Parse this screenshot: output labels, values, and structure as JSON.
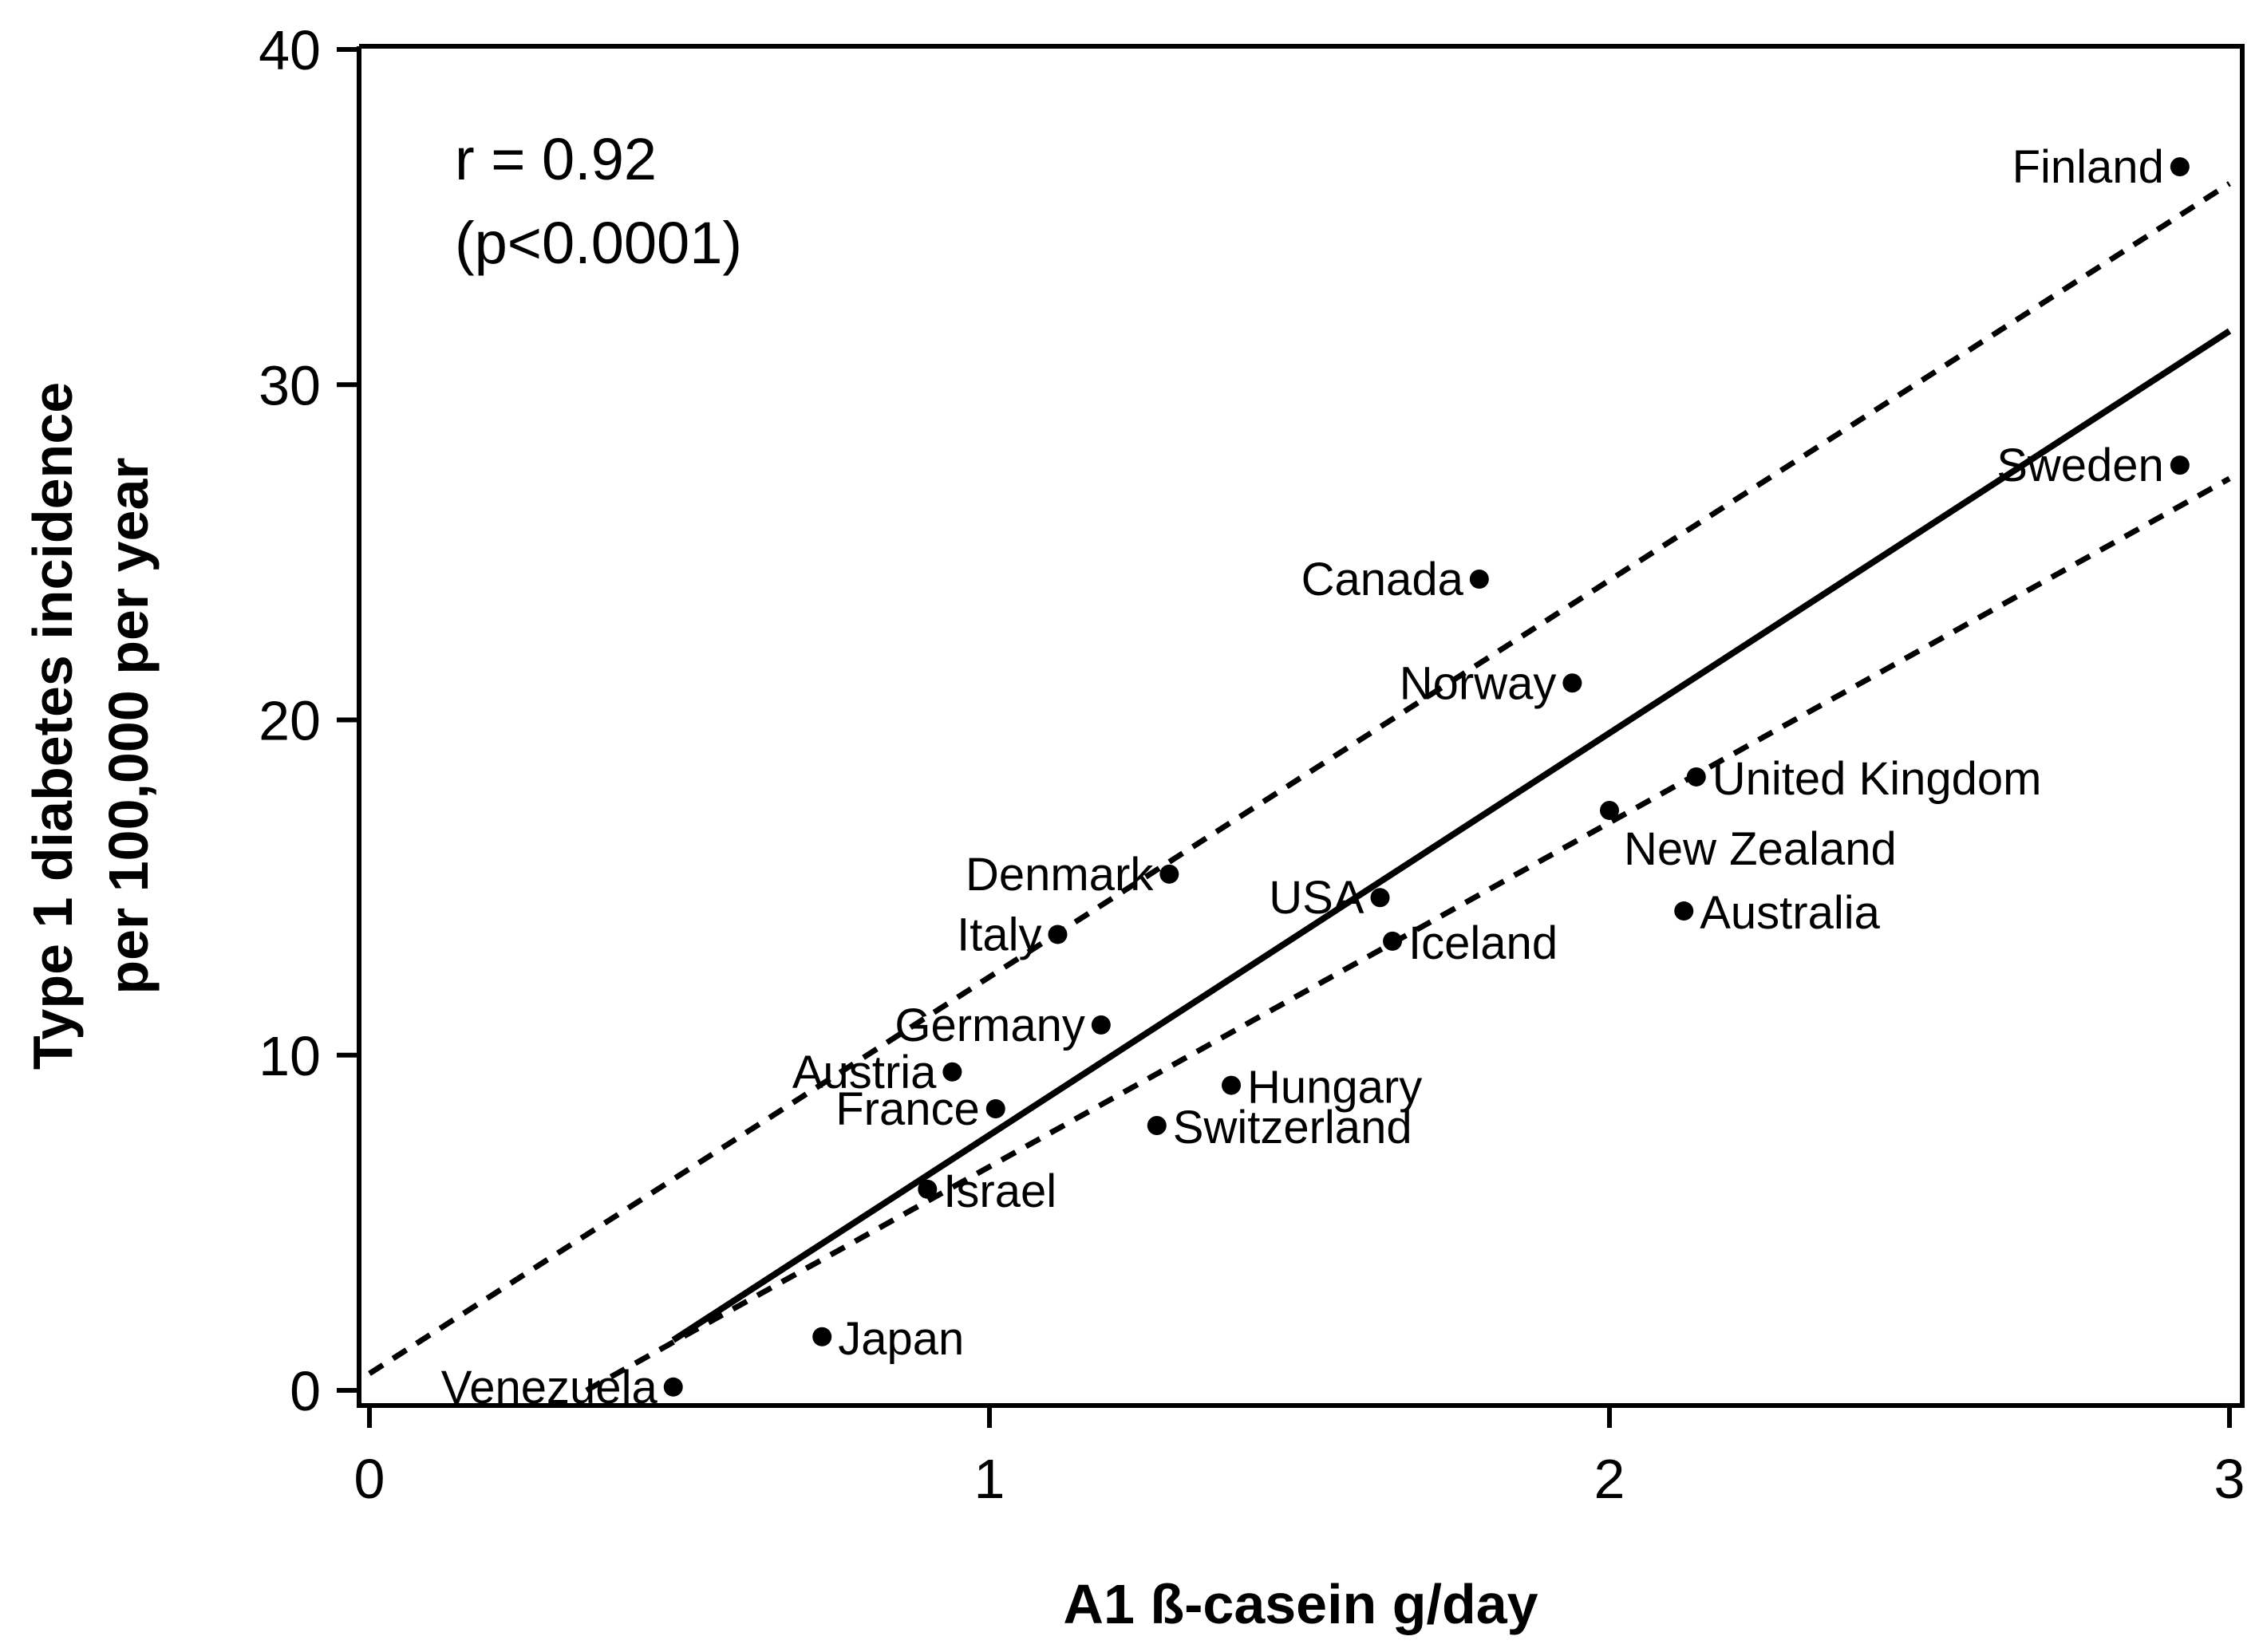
{
  "chart_data": {
    "type": "scatter",
    "xlabel": "A1 ß-casein g/day",
    "ylabel_lines": [
      "Type 1 diabetes incidence",
      "per 100,000 per year"
    ],
    "xlim": [
      0,
      3
    ],
    "ylim": [
      0,
      40
    ],
    "x_ticks": [
      0,
      1,
      2,
      3
    ],
    "y_ticks": [
      0,
      10,
      20,
      30,
      40
    ],
    "grid": false,
    "annotation_lines": [
      "r = 0.92",
      "(p<0.0001)"
    ],
    "points": [
      {
        "label": "Finland",
        "x": 2.92,
        "y": 36.5,
        "label_side": "left"
      },
      {
        "label": "Sweden",
        "x": 2.92,
        "y": 27.6,
        "label_side": "left"
      },
      {
        "label": "Canada",
        "x": 1.79,
        "y": 24.2,
        "label_side": "left"
      },
      {
        "label": "Norway",
        "x": 1.94,
        "y": 21.1,
        "label_side": "left"
      },
      {
        "label": "United Kingdom",
        "x": 2.14,
        "y": 18.3,
        "label_side": "right"
      },
      {
        "label": "New Zealand",
        "x": 2.0,
        "y": 17.3,
        "label_side": "right-below"
      },
      {
        "label": "Australia",
        "x": 2.12,
        "y": 14.3,
        "label_side": "right"
      },
      {
        "label": "Denmark",
        "x": 1.29,
        "y": 15.4,
        "label_side": "left"
      },
      {
        "label": "USA",
        "x": 1.63,
        "y": 14.7,
        "label_side": "left"
      },
      {
        "label": "Italy",
        "x": 1.11,
        "y": 13.6,
        "label_side": "left"
      },
      {
        "label": "Iceland",
        "x": 1.65,
        "y": 13.4,
        "label_side": "right"
      },
      {
        "label": "Germany",
        "x": 1.18,
        "y": 10.9,
        "label_side": "left"
      },
      {
        "label": "Austria",
        "x": 0.94,
        "y": 9.5,
        "label_side": "left"
      },
      {
        "label": "Hungary",
        "x": 1.39,
        "y": 9.1,
        "label_side": "right"
      },
      {
        "label": "France",
        "x": 1.01,
        "y": 8.4,
        "label_side": "left"
      },
      {
        "label": "Switzerland",
        "x": 1.27,
        "y": 7.9,
        "label_side": "right"
      },
      {
        "label": "Israel",
        "x": 0.9,
        "y": 6.0,
        "label_side": "right"
      },
      {
        "label": "Japan",
        "x": 0.73,
        "y": 1.6,
        "label_side": "right"
      },
      {
        "label": "Venezuela",
        "x": 0.49,
        "y": 0.1,
        "label_side": "left"
      }
    ],
    "fit_line": {
      "x": [
        0.49,
        3.0
      ],
      "y": [
        1.5,
        31.6
      ]
    },
    "upper_bound": {
      "x": [
        0.0,
        3.0
      ],
      "y": [
        0.5,
        36.0
      ]
    },
    "lower_bound": {
      "x": [
        0.35,
        3.0
      ],
      "y": [
        0.0,
        27.2
      ]
    }
  }
}
